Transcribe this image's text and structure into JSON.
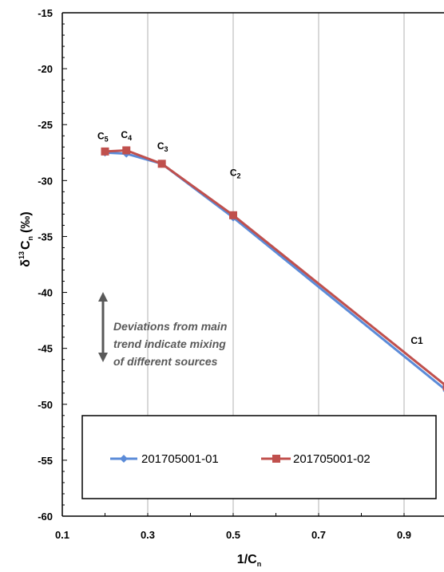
{
  "chart_data": {
    "type": "line",
    "xlabel_main": "1/C",
    "xlabel_sub": "n",
    "ylabel_main": "δ",
    "ylabel_sup": "13",
    "ylabel_c": "C",
    "ylabel_sub": "n",
    "ylabel_unit": "(‰)",
    "xlim": [
      0.1,
      1.0
    ],
    "ylim": [
      -60,
      -15
    ],
    "x_ticks": [
      "0.1",
      "0.3",
      "0.5",
      "0.7",
      "0.9"
    ],
    "x_tick_values": [
      0.1,
      0.3,
      0.5,
      0.7,
      0.9
    ],
    "y_ticks": [
      "-15",
      "-20",
      "-25",
      "-30",
      "-35",
      "-40",
      "-45",
      "-50",
      "-55",
      "-60"
    ],
    "y_tick_values": [
      -15,
      -20,
      -25,
      -30,
      -35,
      -40,
      -45,
      -50,
      -55,
      -60
    ],
    "grid": "vertical",
    "legend_position": "bottom",
    "series": [
      {
        "name": "201705001-01",
        "color": "#5B8BD8",
        "marker": "diamond",
        "x": [
          0.2,
          0.25,
          0.333,
          0.5,
          1.0
        ],
        "y": [
          -27.5,
          -27.6,
          -28.5,
          -33.3,
          -48.8
        ]
      },
      {
        "name": "201705001-02",
        "color": "#C0504D",
        "marker": "square",
        "x": [
          0.2,
          0.25,
          0.333,
          0.5,
          1.0
        ],
        "y": [
          -27.4,
          -27.3,
          -28.5,
          -33.1,
          -48.4
        ]
      }
    ],
    "annotations": [
      {
        "main": "C",
        "sub": "5",
        "x": 0.195,
        "y": -26.3
      },
      {
        "main": "C",
        "sub": "4",
        "x": 0.25,
        "y": -26.2
      },
      {
        "main": "C",
        "sub": "3",
        "x": 0.335,
        "y": -27.2
      },
      {
        "main": "C",
        "sub": "2",
        "x": 0.505,
        "y": -29.6
      },
      {
        "main": "C1",
        "sub": "",
        "x": 0.93,
        "y": -44.6
      }
    ],
    "note": {
      "lines": [
        "Deviations from main",
        "trend indicate mixing",
        "of different sources"
      ]
    }
  }
}
